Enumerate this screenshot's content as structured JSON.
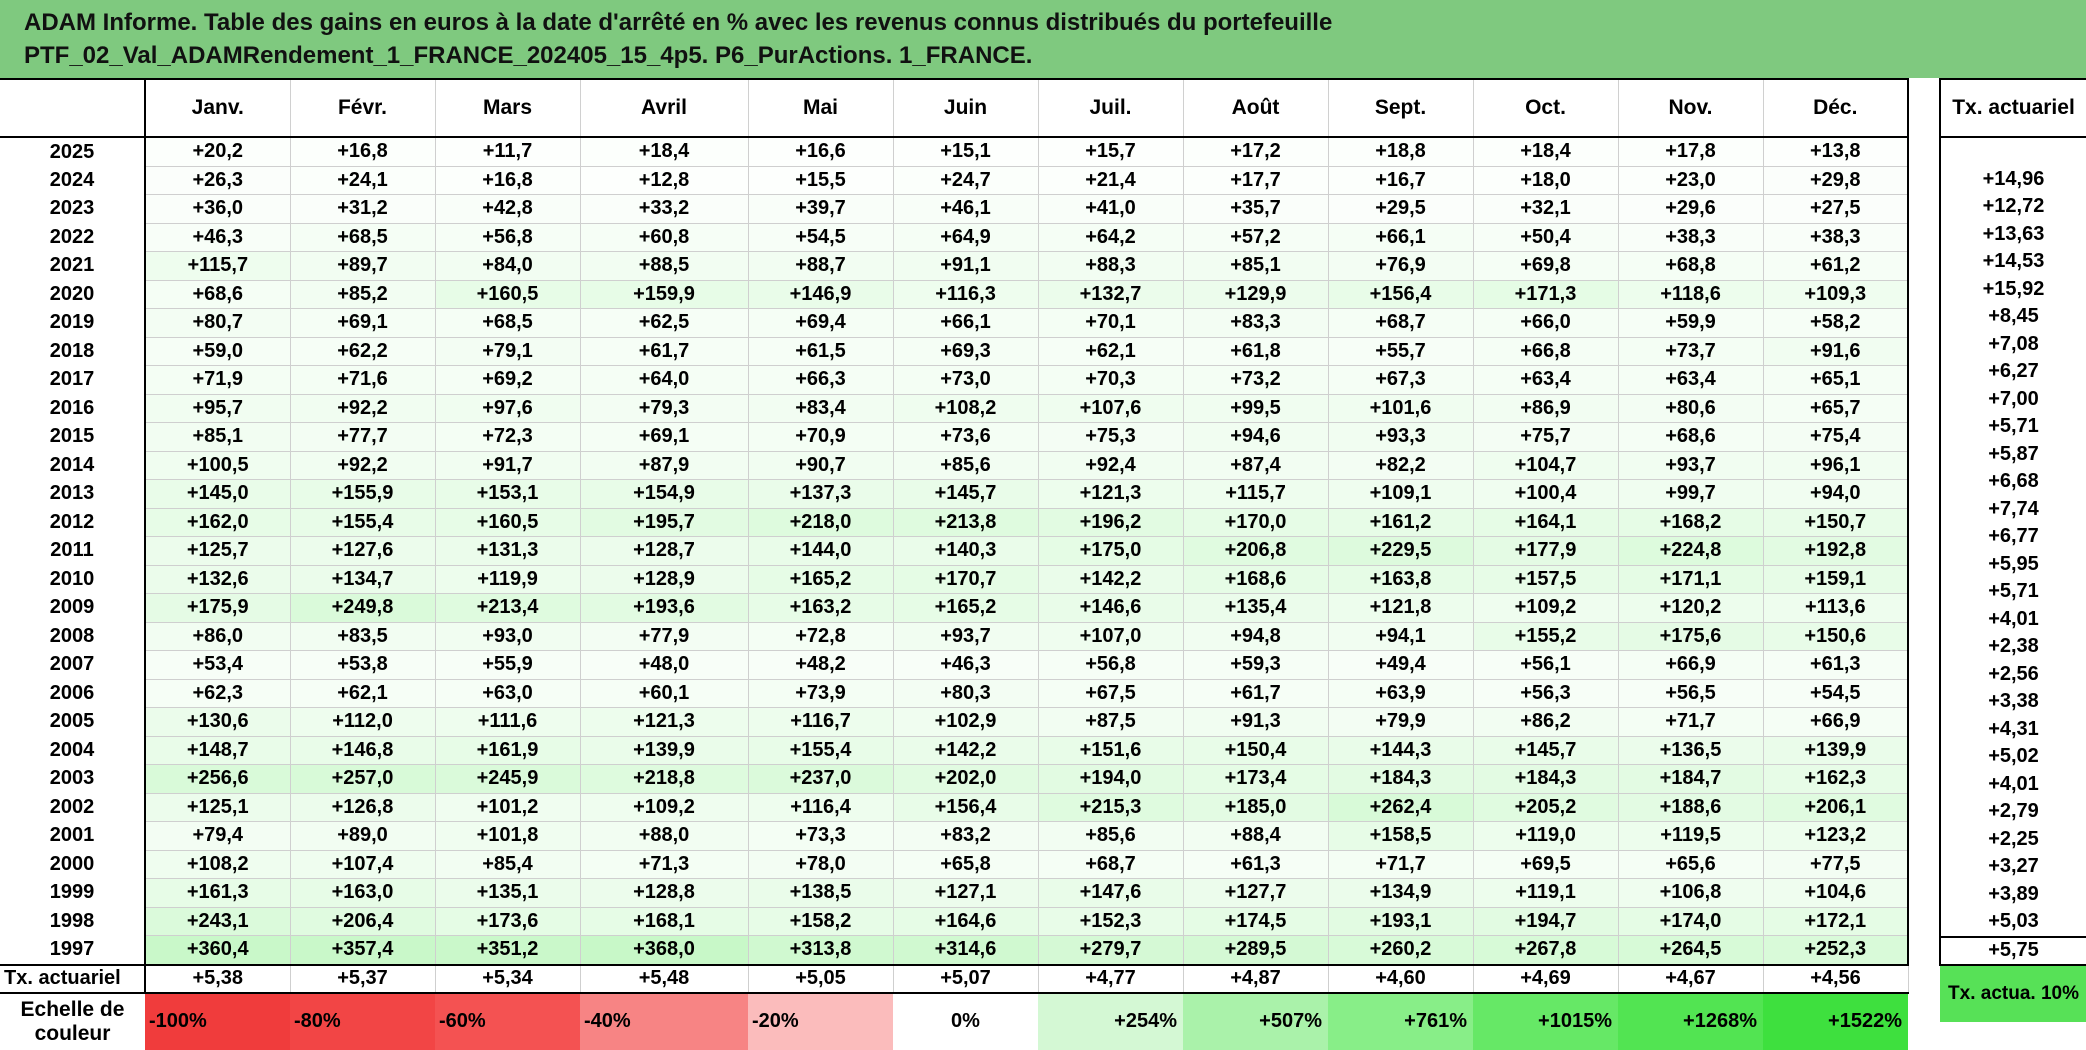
{
  "title": {
    "line1": "ADAM Informe. Table des gains en euros à la date d'arrêté en % avec les revenus connus distribués du portefeuille",
    "line2": "PTF_02_Val_ADAMRendement_1_FRANCE_202405_15_4p5. P6_PurActions. 1_FRANCE."
  },
  "months": [
    "Janv.",
    "Févr.",
    "Mars",
    "Avril",
    "Mai",
    "Juin",
    "Juil.",
    "Août",
    "Sept.",
    "Oct.",
    "Nov.",
    "Déc."
  ],
  "side_header": "Tx. actuariel",
  "rows": [
    {
      "year": "2025",
      "values": [
        "+20,2",
        "+16,8",
        "+11,7",
        "+18,4",
        "+16,6",
        "+15,1",
        "+15,7",
        "+17,2",
        "+18,8",
        "+18,4",
        "+17,8",
        "+13,8"
      ],
      "tx": ""
    },
    {
      "year": "2024",
      "values": [
        "+26,3",
        "+24,1",
        "+16,8",
        "+12,8",
        "+15,5",
        "+24,7",
        "+21,4",
        "+17,7",
        "+16,7",
        "+18,0",
        "+23,0",
        "+29,8"
      ],
      "tx": "+14,96"
    },
    {
      "year": "2023",
      "values": [
        "+36,0",
        "+31,2",
        "+42,8",
        "+33,2",
        "+39,7",
        "+46,1",
        "+41,0",
        "+35,7",
        "+29,5",
        "+32,1",
        "+29,6",
        "+27,5"
      ],
      "tx": "+12,72"
    },
    {
      "year": "2022",
      "values": [
        "+46,3",
        "+68,5",
        "+56,8",
        "+60,8",
        "+54,5",
        "+64,9",
        "+64,2",
        "+57,2",
        "+66,1",
        "+50,4",
        "+38,3",
        "+38,3"
      ],
      "tx": "+13,63"
    },
    {
      "year": "2021",
      "values": [
        "+115,7",
        "+89,7",
        "+84,0",
        "+88,5",
        "+88,7",
        "+91,1",
        "+88,3",
        "+85,1",
        "+76,9",
        "+69,8",
        "+68,8",
        "+61,2"
      ],
      "tx": "+14,53"
    },
    {
      "year": "2020",
      "values": [
        "+68,6",
        "+85,2",
        "+160,5",
        "+159,9",
        "+146,9",
        "+116,3",
        "+132,7",
        "+129,9",
        "+156,4",
        "+171,3",
        "+118,6",
        "+109,3"
      ],
      "tx": "+15,92"
    },
    {
      "year": "2019",
      "values": [
        "+80,7",
        "+69,1",
        "+68,5",
        "+62,5",
        "+69,4",
        "+66,1",
        "+70,1",
        "+83,3",
        "+68,7",
        "+66,0",
        "+59,9",
        "+58,2"
      ],
      "tx": "+8,45"
    },
    {
      "year": "2018",
      "values": [
        "+59,0",
        "+62,2",
        "+79,1",
        "+61,7",
        "+61,5",
        "+69,3",
        "+62,1",
        "+61,8",
        "+55,7",
        "+66,8",
        "+73,7",
        "+91,6"
      ],
      "tx": "+7,08"
    },
    {
      "year": "2017",
      "values": [
        "+71,9",
        "+71,6",
        "+69,2",
        "+64,0",
        "+66,3",
        "+73,0",
        "+70,3",
        "+73,2",
        "+67,3",
        "+63,4",
        "+63,4",
        "+65,1"
      ],
      "tx": "+6,27"
    },
    {
      "year": "2016",
      "values": [
        "+95,7",
        "+92,2",
        "+97,6",
        "+79,3",
        "+83,4",
        "+108,2",
        "+107,6",
        "+99,5",
        "+101,6",
        "+86,9",
        "+80,6",
        "+65,7"
      ],
      "tx": "+7,00"
    },
    {
      "year": "2015",
      "values": [
        "+85,1",
        "+77,7",
        "+72,3",
        "+69,1",
        "+70,9",
        "+73,6",
        "+75,3",
        "+94,6",
        "+93,3",
        "+75,7",
        "+68,6",
        "+75,4"
      ],
      "tx": "+5,71"
    },
    {
      "year": "2014",
      "values": [
        "+100,5",
        "+92,2",
        "+91,7",
        "+87,9",
        "+90,7",
        "+85,6",
        "+92,4",
        "+87,4",
        "+82,2",
        "+104,7",
        "+93,7",
        "+96,1"
      ],
      "tx": "+5,87"
    },
    {
      "year": "2013",
      "values": [
        "+145,0",
        "+155,9",
        "+153,1",
        "+154,9",
        "+137,3",
        "+145,7",
        "+121,3",
        "+115,7",
        "+109,1",
        "+100,4",
        "+99,7",
        "+94,0"
      ],
      "tx": "+6,68"
    },
    {
      "year": "2012",
      "values": [
        "+162,0",
        "+155,4",
        "+160,5",
        "+195,7",
        "+218,0",
        "+213,8",
        "+196,2",
        "+170,0",
        "+161,2",
        "+164,1",
        "+168,2",
        "+150,7"
      ],
      "tx": "+7,74"
    },
    {
      "year": "2011",
      "values": [
        "+125,7",
        "+127,6",
        "+131,3",
        "+128,7",
        "+144,0",
        "+140,3",
        "+175,0",
        "+206,8",
        "+229,5",
        "+177,9",
        "+224,8",
        "+192,8"
      ],
      "tx": "+6,77"
    },
    {
      "year": "2010",
      "values": [
        "+132,6",
        "+134,7",
        "+119,9",
        "+128,9",
        "+165,2",
        "+170,7",
        "+142,2",
        "+168,6",
        "+163,8",
        "+157,5",
        "+171,1",
        "+159,1"
      ],
      "tx": "+5,95"
    },
    {
      "year": "2009",
      "values": [
        "+175,9",
        "+249,8",
        "+213,4",
        "+193,6",
        "+163,2",
        "+165,2",
        "+146,6",
        "+135,4",
        "+121,8",
        "+109,2",
        "+120,2",
        "+113,6"
      ],
      "tx": "+5,71"
    },
    {
      "year": "2008",
      "values": [
        "+86,0",
        "+83,5",
        "+93,0",
        "+77,9",
        "+72,8",
        "+93,7",
        "+107,0",
        "+94,8",
        "+94,1",
        "+155,2",
        "+175,6",
        "+150,6"
      ],
      "tx": "+4,01"
    },
    {
      "year": "2007",
      "values": [
        "+53,4",
        "+53,8",
        "+55,9",
        "+48,0",
        "+48,2",
        "+46,3",
        "+56,8",
        "+59,3",
        "+49,4",
        "+56,1",
        "+66,9",
        "+61,3"
      ],
      "tx": "+2,38"
    },
    {
      "year": "2006",
      "values": [
        "+62,3",
        "+62,1",
        "+63,0",
        "+60,1",
        "+73,9",
        "+80,3",
        "+67,5",
        "+61,7",
        "+63,9",
        "+56,3",
        "+56,5",
        "+54,5"
      ],
      "tx": "+2,56"
    },
    {
      "year": "2005",
      "values": [
        "+130,6",
        "+112,0",
        "+111,6",
        "+121,3",
        "+116,7",
        "+102,9",
        "+87,5",
        "+91,3",
        "+79,9",
        "+86,2",
        "+71,7",
        "+66,9"
      ],
      "tx": "+3,38"
    },
    {
      "year": "2004",
      "values": [
        "+148,7",
        "+146,8",
        "+161,9",
        "+139,9",
        "+155,4",
        "+142,2",
        "+151,6",
        "+150,4",
        "+144,3",
        "+145,7",
        "+136,5",
        "+139,9"
      ],
      "tx": "+4,31"
    },
    {
      "year": "2003",
      "values": [
        "+256,6",
        "+257,0",
        "+245,9",
        "+218,8",
        "+237,0",
        "+202,0",
        "+194,0",
        "+173,4",
        "+184,3",
        "+184,3",
        "+184,7",
        "+162,3"
      ],
      "tx": "+5,02"
    },
    {
      "year": "2002",
      "values": [
        "+125,1",
        "+126,8",
        "+101,2",
        "+109,2",
        "+116,4",
        "+156,4",
        "+215,3",
        "+185,0",
        "+262,4",
        "+205,2",
        "+188,6",
        "+206,1"
      ],
      "tx": "+4,01"
    },
    {
      "year": "2001",
      "values": [
        "+79,4",
        "+89,0",
        "+101,8",
        "+88,0",
        "+73,3",
        "+83,2",
        "+85,6",
        "+88,4",
        "+158,5",
        "+119,0",
        "+119,5",
        "+123,2"
      ],
      "tx": "+2,79"
    },
    {
      "year": "2000",
      "values": [
        "+108,2",
        "+107,4",
        "+85,4",
        "+71,3",
        "+78,0",
        "+65,8",
        "+68,7",
        "+61,3",
        "+71,7",
        "+69,5",
        "+65,6",
        "+77,5"
      ],
      "tx": "+2,25"
    },
    {
      "year": "1999",
      "values": [
        "+161,3",
        "+163,0",
        "+135,1",
        "+128,8",
        "+138,5",
        "+127,1",
        "+147,6",
        "+127,7",
        "+134,9",
        "+119,1",
        "+106,8",
        "+104,6"
      ],
      "tx": "+3,27"
    },
    {
      "year": "1998",
      "values": [
        "+243,1",
        "+206,4",
        "+173,6",
        "+168,1",
        "+158,2",
        "+164,6",
        "+152,3",
        "+174,5",
        "+193,1",
        "+194,7",
        "+174,0",
        "+172,1"
      ],
      "tx": "+3,89"
    },
    {
      "year": "1997",
      "values": [
        "+360,4",
        "+357,4",
        "+351,2",
        "+368,0",
        "+313,8",
        "+314,6",
        "+279,7",
        "+289,5",
        "+260,2",
        "+267,8",
        "+264,5",
        "+252,3"
      ],
      "tx": "+5,03"
    }
  ],
  "tx_row": {
    "label": "Tx. actuariel",
    "values": [
      "+5,38",
      "+5,37",
      "+5,34",
      "+5,48",
      "+5,05",
      "+5,07",
      "+4,77",
      "+4,87",
      "+4,60",
      "+4,69",
      "+4,67",
      "+4,56"
    ],
    "side": "+5,75"
  },
  "scale": {
    "label": "Echelle de couleur",
    "items": [
      {
        "text": "-100%",
        "color": "#f03c3c",
        "align": "left"
      },
      {
        "text": "-80%",
        "color": "#f24545",
        "align": "left"
      },
      {
        "text": "-60%",
        "color": "#f45252",
        "align": "left"
      },
      {
        "text": "-40%",
        "color": "#f78484",
        "align": "left"
      },
      {
        "text": "-20%",
        "color": "#fbbcbc",
        "align": "left"
      },
      {
        "text": "0%",
        "color": "#ffffff",
        "align": "center"
      },
      {
        "text": "+254%",
        "color": "#d4f8d4",
        "align": "right"
      },
      {
        "text": "+507%",
        "color": "#aaf2aa",
        "align": "right"
      },
      {
        "text": "+761%",
        "color": "#88ee88",
        "align": "right"
      },
      {
        "text": "+1015%",
        "color": "#66e866",
        "align": "right"
      },
      {
        "text": "+1268%",
        "color": "#52e452",
        "align": "right"
      },
      {
        "text": "+1522%",
        "color": "#3ee03e",
        "align": "right"
      }
    ],
    "side_label": "Tx. actua. 10%",
    "side_color": "#57e157"
  }
}
